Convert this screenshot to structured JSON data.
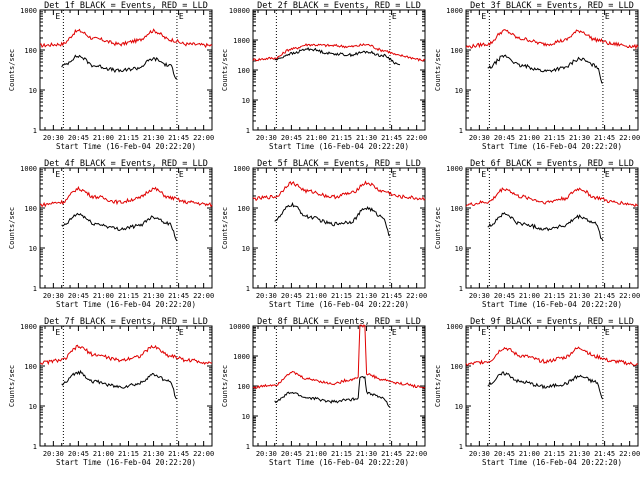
{
  "panels": [
    {
      "title": "Det 1f BLACK = Events, RED = LLD",
      "ylabel": "Counts/sec",
      "xlabel": "Start Time (16-Feb-04 20:22:20)",
      "marker_left": "E",
      "marker_right": "E"
    },
    {
      "title": "Det 2f BLACK = Events, RED = LLD",
      "ylabel": "Counts/sec",
      "xlabel": "Start Time (16-Feb-04 20:22:20)",
      "marker_left": "",
      "marker_right": "E"
    },
    {
      "title": "Det 3f BLACK = Events, RED = LLD",
      "ylabel": "Counts/sec",
      "xlabel": "Start Time (16-Feb-04 20:22:20)",
      "marker_left": "E",
      "marker_right": "E"
    },
    {
      "title": "Det 4f BLACK = Events, RED = LLD",
      "ylabel": "Counts/sec",
      "xlabel": "Start Time (16-Feb-04 20:22:20)",
      "marker_left": "E",
      "marker_right": "E"
    },
    {
      "title": "Det 5f BLACK = Events, RED = LLD",
      "ylabel": "Counts/sec",
      "xlabel": "Start Time (16-Feb-04 20:22:20)",
      "marker_left": "",
      "marker_right": "E"
    },
    {
      "title": "Det 6f BLACK = Events, RED = LLD",
      "ylabel": "Counts/sec",
      "xlabel": "Start Time (16-Feb-04 20:22:20)",
      "marker_left": "E",
      "marker_right": "E"
    },
    {
      "title": "Det 7f BLACK = Events, RED = LLD",
      "ylabel": "Counts/sec",
      "xlabel": "Start Time (16-Feb-04 20:22:20)",
      "marker_left": "E",
      "marker_right": "E"
    },
    {
      "title": "Det 8f BLACK = Events, RED = LLD",
      "ylabel": "Counts/sec",
      "xlabel": "Start Time (16-Feb-04 20:22:20)",
      "marker_left": "",
      "marker_right": "E"
    },
    {
      "title": "Det 9f BLACK = Events, RED = LLD",
      "ylabel": "Counts/sec",
      "xlabel": "Start Time (16-Feb-04 20:22:20)",
      "marker_left": "E",
      "marker_right": "E"
    }
  ],
  "colors": {
    "events": "#000000",
    "lld": "#e00000",
    "axes": "#000000"
  },
  "chart_data": [
    {
      "type": "line",
      "title": "Det 1f BLACK = Events, RED = LLD",
      "xlabel": "Start Time (16-Feb-04 20:22:20)",
      "ylabel": "Counts/sec",
      "yscale": "log",
      "ylim": [
        1,
        1000
      ],
      "xlim": [
        "20:22",
        "22:05"
      ],
      "x_ticks": [
        "20:30",
        "20:45",
        "21:00",
        "21:15",
        "21:30",
        "21:45",
        "22:00"
      ],
      "y_ticks": [
        "1",
        "10",
        "100",
        "1000"
      ],
      "vlines": [
        "20:36",
        "21:44"
      ],
      "series": [
        {
          "name": "LLD",
          "color": "red",
          "x": [
            "20:22",
            "20:35",
            "20:45",
            "20:55",
            "21:10",
            "21:20",
            "21:30",
            "21:40",
            "21:50",
            "22:05"
          ],
          "values": [
            130,
            140,
            300,
            190,
            140,
            170,
            300,
            180,
            140,
            130
          ]
        },
        {
          "name": "Events",
          "color": "black",
          "x": [
            "20:35",
            "20:45",
            "20:55",
            "21:10",
            "21:20",
            "21:30",
            "21:40",
            "21:44"
          ],
          "values": [
            40,
            70,
            40,
            30,
            35,
            60,
            40,
            20
          ]
        }
      ]
    },
    {
      "type": "line",
      "title": "Det 2f BLACK = Events, RED = LLD",
      "xlabel": "Start Time (16-Feb-04 20:22:20)",
      "ylabel": "Counts/sec",
      "yscale": "log",
      "ylim": [
        1,
        10000
      ],
      "xlim": [
        "20:22",
        "22:05"
      ],
      "x_ticks": [
        "20:30",
        "20:45",
        "21:00",
        "21:15",
        "21:30",
        "21:45",
        "22:00"
      ],
      "y_ticks": [
        "1",
        "10",
        "100",
        "1000",
        "10000"
      ],
      "vlines": [
        "20:36",
        "21:44"
      ],
      "series": [
        {
          "name": "LLD",
          "color": "red",
          "x": [
            "20:22",
            "20:35",
            "20:45",
            "20:55",
            "21:10",
            "21:20",
            "21:30",
            "21:40",
            "21:50",
            "22:05"
          ],
          "values": [
            220,
            250,
            500,
            700,
            650,
            600,
            700,
            450,
            300,
            210
          ]
        },
        {
          "name": "Events",
          "color": "black",
          "x": [
            "20:35",
            "20:45",
            "20:55",
            "21:10",
            "21:20",
            "21:30",
            "21:40",
            "21:50"
          ],
          "values": [
            220,
            350,
            500,
            350,
            320,
            400,
            300,
            150
          ]
        }
      ]
    },
    {
      "type": "line",
      "title": "Det 3f BLACK = Events, RED = LLD",
      "xlabel": "Start Time (16-Feb-04 20:22:20)",
      "ylabel": "Counts/sec",
      "yscale": "log",
      "ylim": [
        1,
        1000
      ],
      "xlim": [
        "20:22",
        "22:05"
      ],
      "x_ticks": [
        "20:30",
        "20:45",
        "21:00",
        "21:15",
        "21:30",
        "21:45",
        "22:00"
      ],
      "y_ticks": [
        "1",
        "10",
        "100",
        "1000"
      ],
      "vlines": [
        "20:36",
        "21:44"
      ],
      "series": [
        {
          "name": "LLD",
          "color": "red",
          "x": [
            "20:22",
            "20:35",
            "20:45",
            "20:55",
            "21:10",
            "21:20",
            "21:30",
            "21:40",
            "21:50",
            "22:05"
          ],
          "values": [
            120,
            140,
            300,
            190,
            140,
            170,
            300,
            180,
            140,
            120
          ]
        },
        {
          "name": "Events",
          "color": "black",
          "x": [
            "20:35",
            "20:45",
            "20:55",
            "21:10",
            "21:20",
            "21:30",
            "21:40",
            "21:44"
          ],
          "values": [
            35,
            70,
            40,
            30,
            35,
            60,
            40,
            15
          ]
        }
      ]
    },
    {
      "type": "line",
      "title": "Det 4f BLACK = Events, RED = LLD",
      "xlabel": "Start Time (16-Feb-04 20:22:20)",
      "ylabel": "Counts/sec",
      "yscale": "log",
      "ylim": [
        1,
        1000
      ],
      "xlim": [
        "20:22",
        "22:05"
      ],
      "x_ticks": [
        "20:30",
        "20:45",
        "21:00",
        "21:15",
        "21:30",
        "21:45",
        "22:00"
      ],
      "y_ticks": [
        "1",
        "10",
        "100",
        "1000"
      ],
      "vlines": [
        "20:36",
        "21:44"
      ],
      "series": [
        {
          "name": "LLD",
          "color": "red",
          "x": [
            "20:22",
            "20:35",
            "20:45",
            "20:55",
            "21:10",
            "21:20",
            "21:30",
            "21:40",
            "21:50",
            "22:05"
          ],
          "values": [
            120,
            140,
            300,
            190,
            140,
            170,
            300,
            180,
            140,
            120
          ]
        },
        {
          "name": "Events",
          "color": "black",
          "x": [
            "20:35",
            "20:45",
            "20:55",
            "21:10",
            "21:20",
            "21:30",
            "21:40",
            "21:44"
          ],
          "values": [
            35,
            70,
            40,
            30,
            35,
            60,
            40,
            15
          ]
        }
      ]
    },
    {
      "type": "line",
      "title": "Det 5f BLACK = Events, RED = LLD",
      "xlabel": "Start Time (16-Feb-04 20:22:20)",
      "ylabel": "Counts/sec",
      "yscale": "log",
      "ylim": [
        1,
        1000
      ],
      "xlim": [
        "20:22",
        "22:05"
      ],
      "x_ticks": [
        "20:30",
        "20:45",
        "21:00",
        "21:15",
        "21:30",
        "21:45",
        "22:00"
      ],
      "y_ticks": [
        "1",
        "10",
        "100",
        "1000"
      ],
      "vlines": [
        "20:36",
        "21:44"
      ],
      "series": [
        {
          "name": "LLD",
          "color": "red",
          "x": [
            "20:22",
            "20:35",
            "20:45",
            "20:55",
            "21:10",
            "21:20",
            "21:30",
            "21:40",
            "21:50",
            "22:05"
          ],
          "values": [
            170,
            190,
            420,
            260,
            190,
            230,
            420,
            260,
            190,
            170
          ]
        },
        {
          "name": "Events",
          "color": "black",
          "x": [
            "20:35",
            "20:45",
            "20:55",
            "21:10",
            "21:20",
            "21:30",
            "21:40",
            "21:44"
          ],
          "values": [
            50,
            120,
            60,
            40,
            45,
            100,
            60,
            20
          ]
        }
      ]
    },
    {
      "type": "line",
      "title": "Det 6f BLACK = Events, RED = LLD",
      "xlabel": "Start Time (16-Feb-04 20:22:20)",
      "ylabel": "Counts/sec",
      "yscale": "log",
      "ylim": [
        1,
        1000
      ],
      "xlim": [
        "20:22",
        "22:05"
      ],
      "x_ticks": [
        "20:30",
        "20:45",
        "21:00",
        "21:15",
        "21:30",
        "21:45",
        "22:00"
      ],
      "y_ticks": [
        "1",
        "10",
        "100",
        "1000"
      ],
      "vlines": [
        "20:36",
        "21:44"
      ],
      "series": [
        {
          "name": "LLD",
          "color": "red",
          "x": [
            "20:22",
            "20:35",
            "20:45",
            "20:55",
            "21:10",
            "21:20",
            "21:30",
            "21:40",
            "21:50",
            "22:05"
          ],
          "values": [
            120,
            140,
            300,
            190,
            140,
            170,
            300,
            180,
            140,
            120
          ]
        },
        {
          "name": "Events",
          "color": "black",
          "x": [
            "20:35",
            "20:45",
            "20:55",
            "21:10",
            "21:20",
            "21:30",
            "21:40",
            "21:44"
          ],
          "values": [
            35,
            70,
            40,
            30,
            35,
            60,
            40,
            15
          ]
        }
      ]
    },
    {
      "type": "line",
      "title": "Det 7f BLACK = Events, RED = LLD",
      "xlabel": "Start Time (16-Feb-04 20:22:20)",
      "ylabel": "Counts/sec",
      "yscale": "log",
      "ylim": [
        1,
        1000
      ],
      "xlim": [
        "20:22",
        "22:05"
      ],
      "x_ticks": [
        "20:30",
        "20:45",
        "21:00",
        "21:15",
        "21:30",
        "21:45",
        "22:00"
      ],
      "y_ticks": [
        "1",
        "10",
        "100",
        "1000"
      ],
      "vlines": [
        "20:36",
        "21:44"
      ],
      "series": [
        {
          "name": "LLD",
          "color": "red",
          "x": [
            "20:22",
            "20:35",
            "20:45",
            "20:55",
            "21:10",
            "21:20",
            "21:30",
            "21:40",
            "21:50",
            "22:05"
          ],
          "values": [
            120,
            140,
            300,
            190,
            140,
            170,
            300,
            180,
            140,
            120
          ]
        },
        {
          "name": "Events",
          "color": "black",
          "x": [
            "20:35",
            "20:45",
            "20:55",
            "21:10",
            "21:20",
            "21:30",
            "21:40",
            "21:44"
          ],
          "values": [
            35,
            70,
            40,
            30,
            35,
            60,
            40,
            15
          ]
        }
      ]
    },
    {
      "type": "line",
      "title": "Det 8f BLACK = Events, RED = LLD",
      "xlabel": "Start Time (16-Feb-04 20:22:20)",
      "ylabel": "Counts/sec",
      "yscale": "log",
      "ylim": [
        1,
        10000
      ],
      "xlim": [
        "20:22",
        "22:05"
      ],
      "x_ticks": [
        "20:30",
        "20:45",
        "21:00",
        "21:15",
        "21:30",
        "21:45",
        "22:00"
      ],
      "y_ticks": [
        "1",
        "10",
        "100",
        "1000",
        "10000"
      ],
      "vlines": [
        "20:36",
        "21:44"
      ],
      "series": [
        {
          "name": "LLD",
          "color": "red",
          "x": [
            "20:22",
            "20:35",
            "20:45",
            "20:55",
            "21:10",
            "21:20",
            "21:25",
            "21:26",
            "21:29",
            "21:30",
            "21:40",
            "21:50",
            "22:05"
          ],
          "values": [
            90,
            110,
            280,
            170,
            120,
            160,
            200,
            10000,
            10000,
            250,
            160,
            120,
            90
          ]
        },
        {
          "name": "Events",
          "color": "black",
          "x": [
            "20:35",
            "20:45",
            "20:55",
            "21:10",
            "21:20",
            "21:25",
            "21:26",
            "21:29",
            "21:30",
            "21:40",
            "21:44"
          ],
          "values": [
            30,
            60,
            40,
            30,
            35,
            40,
            200,
            200,
            60,
            40,
            20
          ]
        }
      ]
    },
    {
      "type": "line",
      "title": "Det 9f BLACK = Events, RED = LLD",
      "xlabel": "Start Time (16-Feb-04 20:22:20)",
      "ylabel": "Counts/sec",
      "yscale": "log",
      "ylim": [
        1,
        1000
      ],
      "xlim": [
        "20:22",
        "22:05"
      ],
      "x_ticks": [
        "20:30",
        "20:45",
        "21:00",
        "21:15",
        "21:30",
        "21:45",
        "22:00"
      ],
      "y_ticks": [
        "1",
        "10",
        "100",
        "1000"
      ],
      "vlines": [
        "20:36",
        "21:44"
      ],
      "series": [
        {
          "name": "LLD",
          "color": "red",
          "x": [
            "20:22",
            "20:35",
            "20:45",
            "20:55",
            "21:10",
            "21:20",
            "21:30",
            "21:40",
            "21:50",
            "22:05"
          ],
          "values": [
            110,
            130,
            280,
            180,
            130,
            160,
            280,
            170,
            130,
            110
          ]
        },
        {
          "name": "Events",
          "color": "black",
          "x": [
            "20:35",
            "20:45",
            "20:55",
            "21:10",
            "21:20",
            "21:30",
            "21:40",
            "21:44"
          ],
          "values": [
            35,
            65,
            40,
            30,
            35,
            55,
            40,
            15
          ]
        }
      ]
    }
  ]
}
